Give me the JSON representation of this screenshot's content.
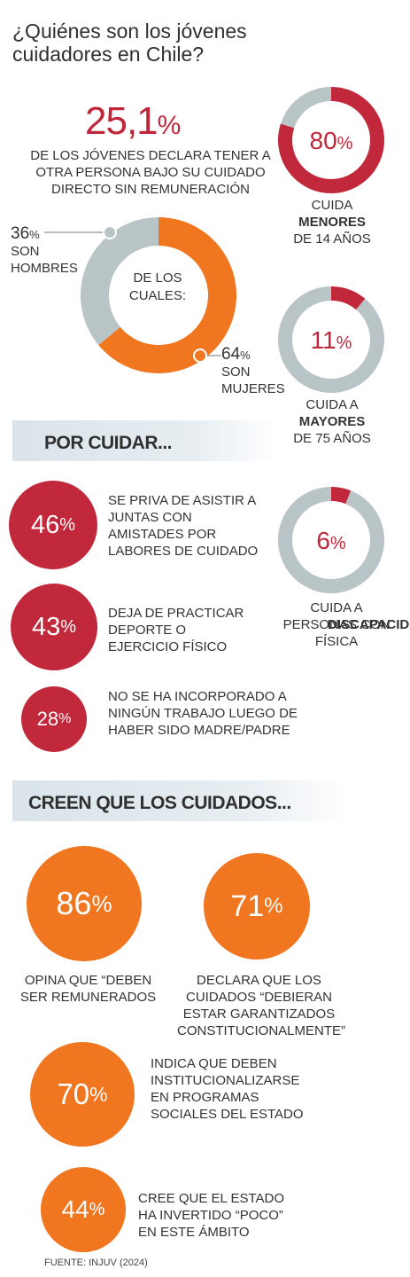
{
  "title": "¿Quiénes son los jóvenes cuidadores en Chile?",
  "headline": {
    "value": "25,1",
    "unit": "%",
    "text": "DE LOS JÓVENES DECLARA TENER A OTRA PERSONA BAJO SU CUIDADO DIRECTO SIN REMUNERACIÓN"
  },
  "colors": {
    "red": "#c1283b",
    "orange": "#f0761f",
    "gray": "#b9c4c6",
    "band": "#d9e4ea"
  },
  "chart_data": [
    {
      "type": "pie",
      "center_label": "DE LOS CUALES:",
      "slices": [
        {
          "value": 36,
          "unit": "%",
          "label": "SON HOMBRES",
          "color": "#b9c4c6"
        },
        {
          "value": 64,
          "unit": "%",
          "label": "SON MUJERES",
          "color": "#f0761f"
        }
      ]
    },
    {
      "type": "pie",
      "value": 80,
      "unit": "%",
      "label_pre": "CUIDA",
      "label_bold": "MENORES",
      "label_post": "DE 14 AÑOS",
      "color": "#c1283b",
      "rest_color": "#b9c4c6"
    },
    {
      "type": "pie",
      "value": 11,
      "unit": "%",
      "label_pre": "CUIDA A",
      "label_bold": "MAYORES",
      "label_post": "DE 75 AÑOS",
      "color": "#c1283b",
      "rest_color": "#b9c4c6"
    },
    {
      "type": "pie",
      "value": 6,
      "unit": "%",
      "label_pre": "CUIDA A PERSONAS CON",
      "label_bold": "DISCAPACIDAD",
      "label_post": "FÍSICA",
      "color": "#c1283b",
      "rest_color": "#b9c4c6"
    }
  ],
  "section_care": {
    "title": "POR CUIDAR...",
    "items": [
      {
        "value": "46",
        "unit": "%",
        "text": "SE PRIVA DE ASISTIR A JUNTAS CON AMISTADES POR LABORES DE CUIDADO"
      },
      {
        "value": "43",
        "unit": "%",
        "text": "DEJA DE PRACTICAR DEPORTE O EJERCICIO FÍSICO"
      },
      {
        "value": "28",
        "unit": "%",
        "text": "NO SE HA INCORPORADO A NINGÚN TRABAJO LUEGO DE HABER SIDO MADRE/PADRE"
      }
    ]
  },
  "section_beliefs": {
    "title": "CREEN QUE LOS CUIDADOS...",
    "items": [
      {
        "value": "86",
        "unit": "%",
        "text": "OPINA QUE “DEBEN SER REMUNERADOS"
      },
      {
        "value": "71",
        "unit": "%",
        "text": "DECLARA QUE LOS CUIDADOS “DEBIERAN ESTAR GARANTIZADOS CONSTITUCIONALMENTE”"
      },
      {
        "value": "70",
        "unit": "%",
        "text": "INDICA QUE DEBEN INSTITUCIONALIZARSE EN PROGRAMAS SOCIALES DEL ESTADO"
      },
      {
        "value": "44",
        "unit": "%",
        "text": "CREE QUE EL ESTADO HA INVERTIDO “POCO” EN ESTE ÁMBITO"
      }
    ]
  },
  "source": "FUENTE: INJUV (2024)"
}
